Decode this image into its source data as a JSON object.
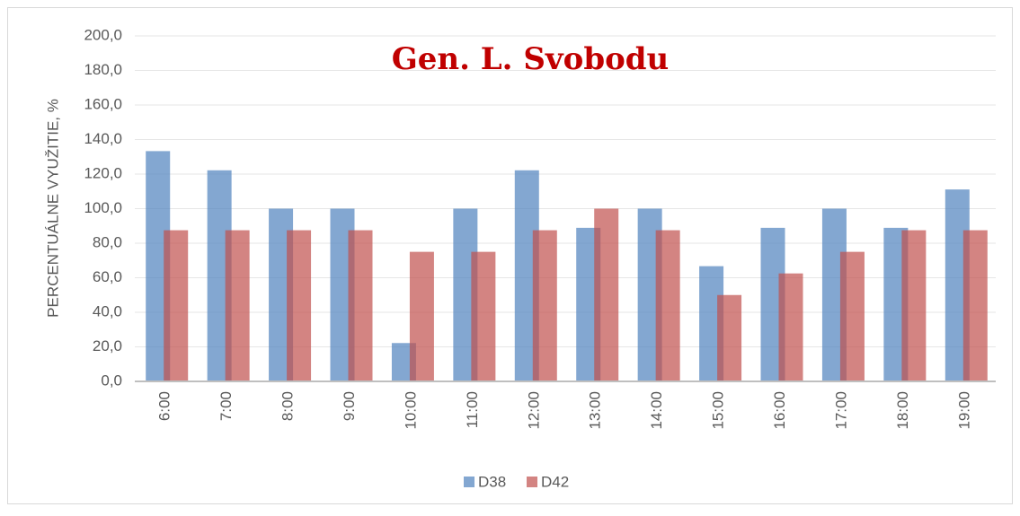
{
  "chart_data": {
    "type": "bar",
    "title": "Gen. L. Svobodu",
    "y_label": "PERCENTUÁLNE VYUŽITIE, %",
    "categories": [
      "6:00",
      "7:00",
      "8:00",
      "9:00",
      "10:00",
      "11:00",
      "12:00",
      "13:00",
      "14:00",
      "15:00",
      "16:00",
      "17:00",
      "18:00",
      "19:00"
    ],
    "series": [
      {
        "name": "D38",
        "color": "#4f81bd",
        "values": [
          133.3,
          122.2,
          100,
          100,
          22.2,
          100,
          122.2,
          88.9,
          100,
          66.7,
          88.9,
          100,
          88.9,
          111.1
        ]
      },
      {
        "name": "D42",
        "color": "#c0504d",
        "values": [
          87.5,
          87.5,
          87.5,
          87.5,
          75,
          75,
          87.5,
          100,
          87.5,
          50,
          62.5,
          75,
          87.5,
          87.5
        ]
      }
    ],
    "ylim": [
      0,
      200
    ],
    "yticks": [
      {
        "value": 0,
        "label": "0,0"
      },
      {
        "value": 20,
        "label": "20,0"
      },
      {
        "value": 40,
        "label": "40,0"
      },
      {
        "value": 60,
        "label": "60,0"
      },
      {
        "value": 80,
        "label": "80,0"
      },
      {
        "value": 100,
        "label": "100,0"
      },
      {
        "value": 120,
        "label": "120,0"
      },
      {
        "value": 140,
        "label": "140,0"
      },
      {
        "value": 160,
        "label": "160,0"
      },
      {
        "value": 180,
        "label": "180,0"
      },
      {
        "value": 200,
        "label": "200,0"
      }
    ],
    "grid": true,
    "legend": "bottom"
  }
}
